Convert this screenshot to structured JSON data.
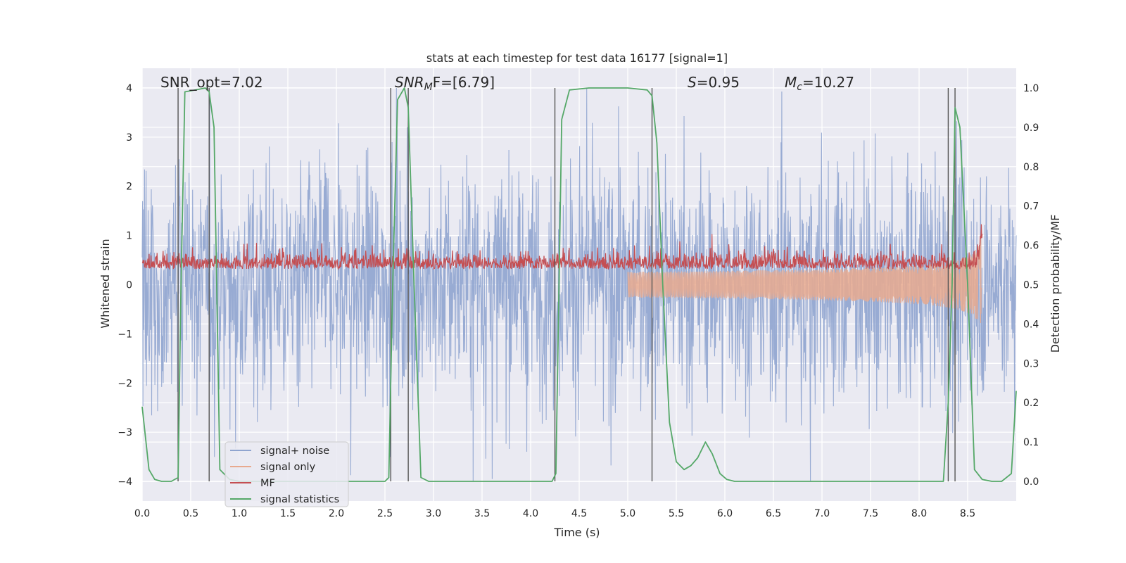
{
  "chart_data": {
    "type": "line",
    "title": "stats at each timestep for test data 16177 [signal=1]",
    "xlabel": "Time (s)",
    "ylabel_left": "Whitened strain",
    "ylabel_right": "Detection probability/MF",
    "xlim": [
      0.0,
      9.0
    ],
    "ylim_left": [
      -4.4,
      4.4
    ],
    "ylim_right": [
      -0.05,
      1.05
    ],
    "x_ticks": [
      "0.0",
      "0.5",
      "1.0",
      "1.5",
      "2.0",
      "2.5",
      "3.0",
      "3.5",
      "4.0",
      "4.5",
      "5.0",
      "5.5",
      "6.0",
      "6.5",
      "7.0",
      "7.5",
      "8.0",
      "8.5"
    ],
    "y_ticks_left": [
      "4",
      "3",
      "2",
      "1",
      "0",
      "−1",
      "−2",
      "−3",
      "−4"
    ],
    "y_ticks_right": [
      "1.0",
      "0.9",
      "0.8",
      "0.7",
      "0.6",
      "0.5",
      "0.4",
      "0.3",
      "0.2",
      "0.1",
      "0.0"
    ],
    "grid": true,
    "legend_position": "lower-left",
    "annotations": {
      "snr_opt": "SNR_opt=7.02",
      "snr_mf_label": "SNR",
      "snr_mf_sub": "M",
      "snr_mf_value": "F=[6.79]",
      "s_label": "S",
      "s_value": "=0.95",
      "mc_label": "M",
      "mc_sub": "c",
      "mc_value": "=10.27"
    },
    "vertical_lines_x": [
      0.37,
      0.69,
      2.56,
      2.74,
      4.25,
      5.25,
      8.3,
      8.37
    ],
    "series": [
      {
        "name": "signal+ noise",
        "axis": "left",
        "color": "#8fa4cf",
        "description": "dense whitened strain, amplitude roughly within ±3.5",
        "typical_abs_peak": 3.5
      },
      {
        "name": "signal only",
        "axis": "left",
        "color": "#e8a98e",
        "description": "chirp growing from ~5.0 s to merger at ~8.65 s",
        "start_x": 5.0,
        "end_x": 8.65,
        "max_abs": 1.2
      },
      {
        "name": "MF",
        "axis": "right",
        "color": "#c44e52",
        "description": "matched-filter output hovering around 0.55, peak ~0.63 at 8.65 s",
        "base": 0.55,
        "peak_x": 8.65,
        "peak_y": 0.63
      },
      {
        "name": "signal statistics",
        "axis": "right",
        "color": "#55a868",
        "x": [
          0.0,
          0.07,
          0.13,
          0.2,
          0.3,
          0.37,
          0.4,
          0.44,
          0.55,
          0.65,
          0.69,
          0.74,
          0.8,
          0.9,
          1.0,
          1.5,
          2.0,
          2.5,
          2.54,
          2.58,
          2.63,
          2.7,
          2.74,
          2.8,
          2.87,
          2.95,
          3.5,
          4.0,
          4.22,
          4.26,
          4.32,
          4.4,
          4.6,
          5.0,
          5.2,
          5.25,
          5.3,
          5.36,
          5.43,
          5.5,
          5.58,
          5.65,
          5.72,
          5.8,
          5.87,
          5.95,
          6.02,
          6.1,
          6.5,
          7.0,
          7.5,
          8.0,
          8.25,
          8.3,
          8.34,
          8.37,
          8.42,
          8.5,
          8.57,
          8.65,
          8.75,
          8.85,
          8.95,
          9.0
        ],
        "y": [
          0.19,
          0.03,
          0.005,
          0.0,
          0.0,
          0.01,
          0.5,
          0.99,
          0.995,
          1.0,
          0.99,
          0.9,
          0.03,
          0.005,
          0.0,
          0.0,
          0.0,
          0.0,
          0.01,
          0.5,
          0.97,
          1.0,
          0.95,
          0.5,
          0.01,
          0.0,
          0.0,
          0.0,
          0.0,
          0.02,
          0.92,
          0.995,
          1.0,
          1.0,
          0.995,
          0.98,
          0.86,
          0.5,
          0.15,
          0.05,
          0.03,
          0.04,
          0.06,
          0.1,
          0.07,
          0.02,
          0.005,
          0.0,
          0.0,
          0.0,
          0.0,
          0.0,
          0.0,
          0.2,
          0.5,
          0.95,
          0.9,
          0.5,
          0.03,
          0.005,
          0.0,
          0.0,
          0.02,
          0.23
        ]
      }
    ]
  }
}
